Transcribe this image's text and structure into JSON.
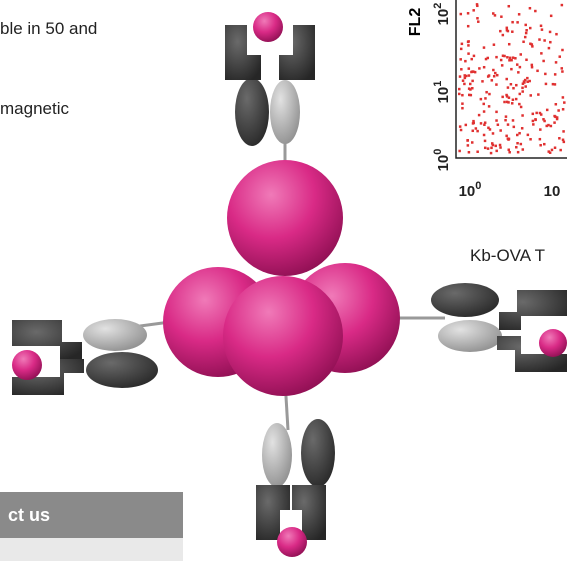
{
  "text": {
    "lines": [
      "ble in 50 and",
      "magnetic"
    ]
  },
  "figure": {
    "caption": "Kb-OVA T",
    "plot": {
      "y_axis_label": "FL2",
      "y_ticks": [
        {
          "base": "10",
          "exp": "0"
        },
        {
          "base": "10",
          "exp": "1"
        },
        {
          "base": "10",
          "exp": "2"
        }
      ],
      "x_ticks": [
        {
          "base": "10",
          "exp": "0"
        },
        {
          "base": "10"
        }
      ]
    }
  },
  "sidebar": {
    "contact": "ct us"
  }
}
